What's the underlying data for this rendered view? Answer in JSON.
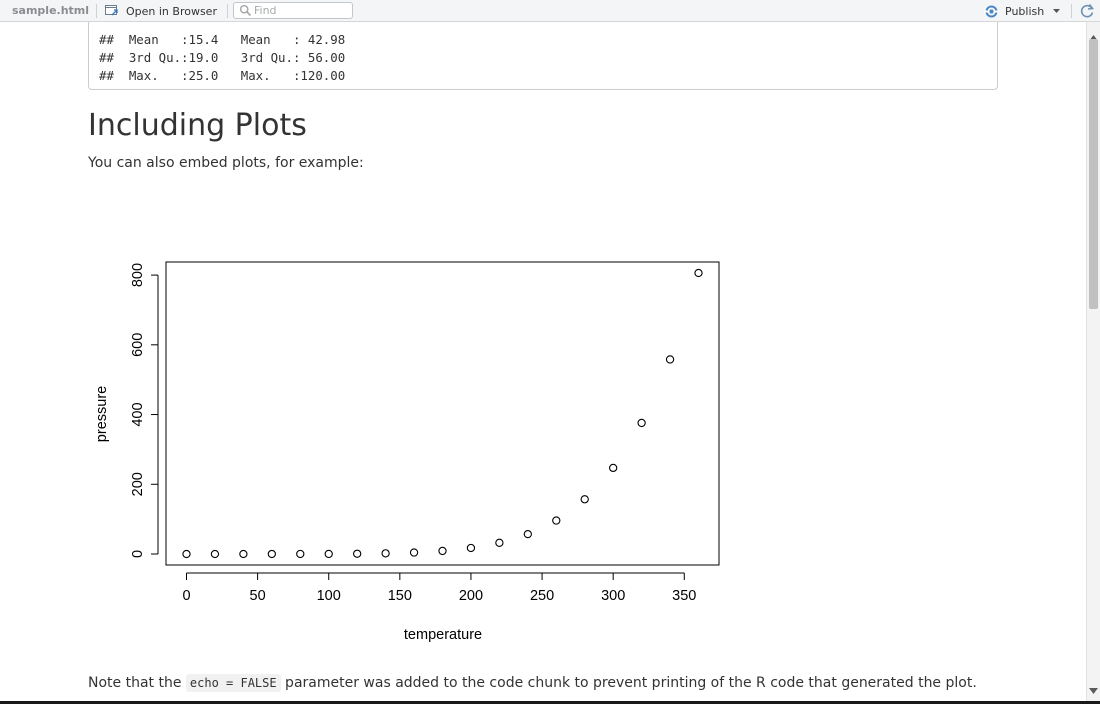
{
  "toolbar": {
    "filename": "sample.html",
    "open_in_browser_label": "Open in Browser",
    "find_placeholder": "Find",
    "find_value": "",
    "publish_label": "Publish",
    "icons": [
      "open-in-browser-icon",
      "search-icon",
      "publish-icon",
      "dropdown-caret-icon",
      "refresh-icon"
    ]
  },
  "code_output": {
    "lines": [
      "##  Mean   :15.4   Mean   : 42.98",
      "##  3rd Qu.:19.0   3rd Qu.: 56.00",
      "##  Max.   :25.0   Max.   :120.00"
    ]
  },
  "section": {
    "title": "Including Plots",
    "intro": "You can also embed plots, for example:"
  },
  "chart_data": {
    "type": "scatter",
    "title": "",
    "xlabel": "temperature",
    "ylabel": "pressure",
    "xlim": [
      0,
      360
    ],
    "ylim": [
      0,
      806
    ],
    "x_ticks": [
      "0",
      "50",
      "100",
      "150",
      "200",
      "250",
      "300",
      "350"
    ],
    "y_ticks": [
      "0",
      "200",
      "400",
      "600",
      "800"
    ],
    "grid": false,
    "marker": "open-circle",
    "x": [
      0,
      20,
      40,
      60,
      80,
      100,
      120,
      140,
      160,
      180,
      200,
      220,
      240,
      260,
      280,
      300,
      320,
      340,
      360
    ],
    "y": [
      0.0002,
      0.0012,
      0.006,
      0.03,
      0.09,
      0.27,
      0.75,
      1.85,
      4.2,
      8.8,
      17.3,
      32.1,
      57,
      96,
      157,
      247,
      376,
      558,
      806
    ]
  },
  "note": {
    "before": "Note that the ",
    "code": "echo = FALSE",
    "after": " parameter was added to the code chunk to prevent printing of the R code that generated the plot."
  }
}
